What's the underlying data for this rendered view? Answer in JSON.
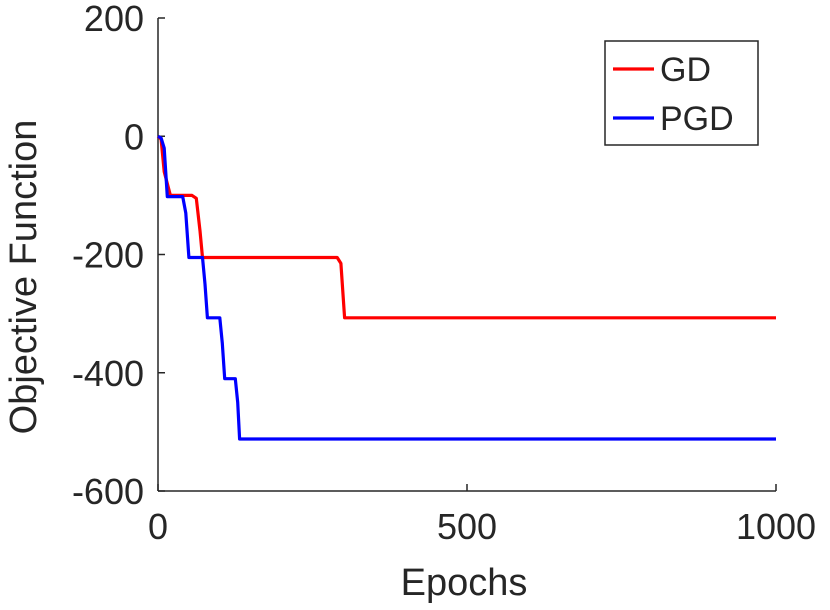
{
  "chart_data": {
    "type": "line",
    "title": "",
    "xlabel": "Epochs",
    "ylabel": "Objective Function",
    "xlim": [
      0,
      1000
    ],
    "ylim": [
      -600,
      200
    ],
    "xticks": [
      0,
      500,
      1000
    ],
    "yticks": [
      200,
      0,
      -200,
      -400,
      -600
    ],
    "xtick_labels": [
      "0",
      "500",
      "1000"
    ],
    "ytick_labels": [
      "200",
      "0",
      "-200",
      "-400",
      "-600"
    ],
    "grid": false,
    "legend": {
      "placement": "top-right",
      "boxed": true
    },
    "series": [
      {
        "name": "GD",
        "color": "#ff0000",
        "x": [
          0,
          5,
          10,
          20,
          55,
          62,
          68,
          72,
          290,
          296,
          302,
          1000
        ],
        "y": [
          0,
          -5,
          -60,
          -100,
          -100,
          -105,
          -160,
          -205,
          -205,
          -215,
          -307,
          -307
        ]
      },
      {
        "name": "PGD",
        "color": "#0000ff",
        "x": [
          0,
          5,
          10,
          15,
          40,
          45,
          50,
          72,
          76,
          80,
          100,
          104,
          108,
          125,
          129,
          132,
          1000
        ],
        "y": [
          0,
          -3,
          -20,
          -102,
          -102,
          -130,
          -205,
          -205,
          -250,
          -307,
          -307,
          -350,
          -410,
          -410,
          -450,
          -512,
          -512
        ]
      }
    ]
  }
}
